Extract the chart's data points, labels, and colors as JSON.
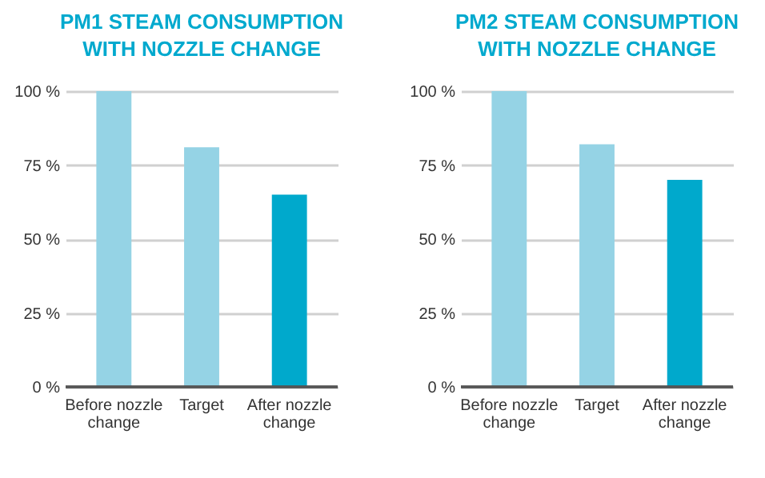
{
  "chart_data": [
    {
      "type": "bar",
      "title": "PM1 STEAM CONSUMPTION WITH NOZZLE CHANGE",
      "categories": [
        "Before nozzle change",
        "Target",
        "After nozzle change"
      ],
      "values": [
        100,
        81,
        65
      ],
      "colors": [
        "#95d3e5",
        "#95d3e5",
        "#00a9cc"
      ],
      "ylim": [
        0,
        100
      ],
      "yticks": [
        {
          "value": 0,
          "label": "0 %"
        },
        {
          "value": 25,
          "label": "25 %"
        },
        {
          "value": 50,
          "label": "50 %"
        },
        {
          "value": 75,
          "label": "75 %"
        },
        {
          "value": 100,
          "label": "100 %"
        }
      ],
      "grid": "y"
    },
    {
      "type": "bar",
      "title": "PM2 STEAM CONSUMPTION WITH NOZZLE CHANGE",
      "categories": [
        "Before nozzle change",
        "Target",
        "After nozzle change"
      ],
      "values": [
        100,
        82,
        70
      ],
      "colors": [
        "#95d3e5",
        "#95d3e5",
        "#00a9cc"
      ],
      "ylim": [
        0,
        100
      ],
      "yticks": [
        {
          "value": 0,
          "label": "0 %"
        },
        {
          "value": 25,
          "label": "25 %"
        },
        {
          "value": 50,
          "label": "50 %"
        },
        {
          "value": 75,
          "label": "75 %"
        },
        {
          "value": 100,
          "label": "100 %"
        }
      ],
      "grid": "y"
    }
  ]
}
